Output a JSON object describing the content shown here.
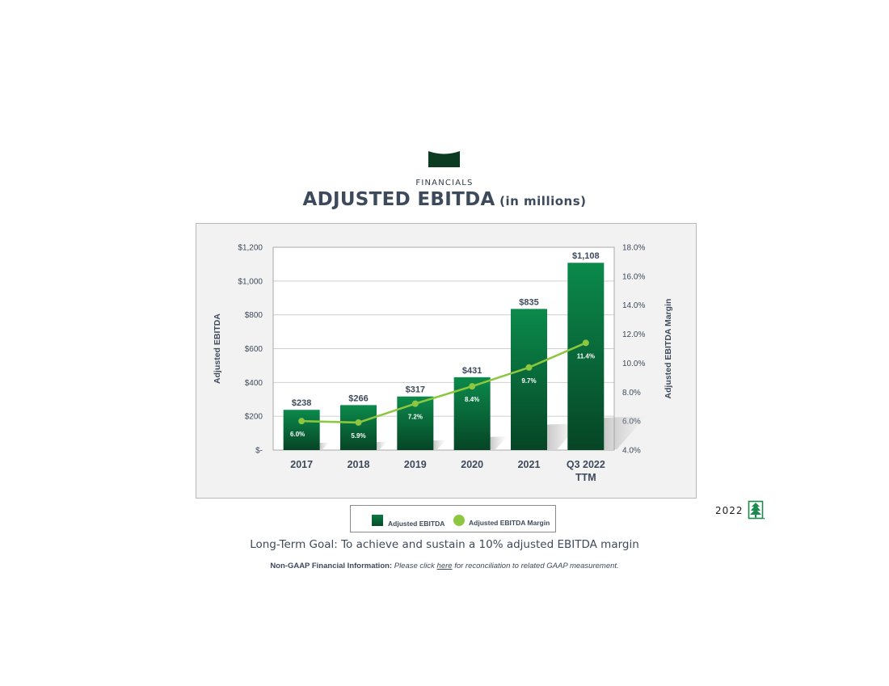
{
  "header": {
    "eyebrow": "FINANCIALS",
    "title": "ADJUSTED EBITDA",
    "title_suffix": "(in millions)"
  },
  "chart_data": {
    "type": "bar",
    "categories": [
      "2017",
      "2018",
      "2019",
      "2020",
      "2021",
      "Q3 2022 TTM"
    ],
    "category_lines": [
      [
        "2017"
      ],
      [
        "2018"
      ],
      [
        "2019"
      ],
      [
        "2020"
      ],
      [
        "2021"
      ],
      [
        "Q3 2022",
        "TTM"
      ]
    ],
    "series": [
      {
        "name": "Adjusted EBITDA",
        "type": "bar",
        "axis": "left",
        "values": [
          238,
          266,
          317,
          431,
          835,
          1108
        ],
        "labels": [
          "$238",
          "$266",
          "$317",
          "$431",
          "$835",
          "$1,108"
        ]
      },
      {
        "name": "Adjusted EBITDA Margin",
        "type": "line",
        "axis": "right",
        "values": [
          6.0,
          5.9,
          7.2,
          8.4,
          9.7,
          11.4
        ],
        "labels": [
          "6.0%",
          "5.9%",
          "7.2%",
          "8.4%",
          "9.7%",
          "11.4%"
        ]
      }
    ],
    "ylabel": "Adjusted EBITDA",
    "y2label": "Adjusted EBITDA Margin",
    "ylim": [
      0,
      1200
    ],
    "y2lim": [
      4,
      18
    ],
    "yticks": [
      0,
      200,
      400,
      600,
      800,
      1000,
      1200
    ],
    "ytick_labels": [
      "$-",
      "$200",
      "$400",
      "$600",
      "$800",
      "$1,000",
      "$1,200"
    ],
    "y2ticks": [
      4,
      6,
      8,
      10,
      12,
      14,
      16,
      18
    ],
    "y2tick_labels": [
      "4.0%",
      "6.0%",
      "8.0%",
      "10.0%",
      "12.0%",
      "14.0%",
      "16.0%",
      "18.0%"
    ],
    "grid": true,
    "legend": "bottom"
  },
  "legend": {
    "bar_label": "Adjusted EBITDA",
    "line_label": "Adjusted EBITDA Margin"
  },
  "brand": {
    "year": "2022",
    "icon": "tree-icon"
  },
  "footer": {
    "goal": "Long-Term Goal: To achieve and sustain a 10% adjusted EBITDA margin",
    "nongaap_bold": "Non-GAAP Financial Information:",
    "nongaap_pre": "Please click",
    "nongaap_link": "here",
    "nongaap_post": "for reconciliation to related GAAP measurement."
  },
  "colors": {
    "bar_top": "#0b8a4b",
    "bar_bottom": "#064526",
    "line": "#8dc63f",
    "text": "#3d4a5c",
    "frame_bg": "#f2f2f2",
    "tab_shape": "#0d3b22",
    "tree": "#1c8a4c"
  }
}
